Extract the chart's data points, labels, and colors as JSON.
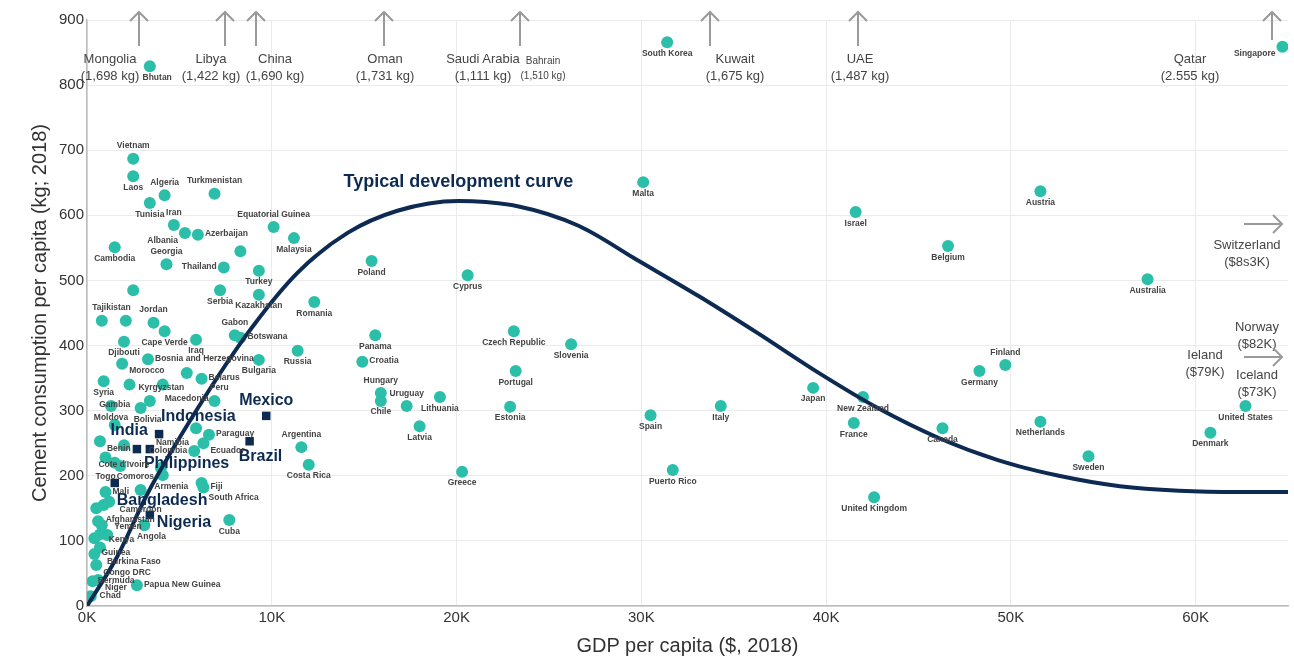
{
  "chart_data": {
    "type": "scatter",
    "xlabel": "GDP per capita ($, 2018)",
    "ylabel": "Cement consumption per capita (kg; 2018)",
    "xlim": [
      0,
      65000
    ],
    "xticks": [
      {
        "value": 0,
        "label": "0K"
      },
      {
        "value": 10000,
        "label": "10K"
      },
      {
        "value": 20000,
        "label": "20K"
      },
      {
        "value": 30000,
        "label": "30K"
      },
      {
        "value": 40000,
        "label": "40K"
      },
      {
        "value": 50000,
        "label": "50K"
      },
      {
        "value": 60000,
        "label": "60K"
      }
    ],
    "ylim": [
      0,
      900
    ],
    "yticks": [
      0,
      100,
      200,
      300,
      400,
      500,
      600,
      700,
      800,
      900
    ],
    "grid": true,
    "legend": false,
    "series": [
      {
        "color": "#2bbfa9",
        "marker": "circle",
        "x": [
          3400,
          31400,
          64700,
          30100,
          41600,
          51600,
          46600,
          57400,
          48300,
          49700,
          39300,
          42000,
          41500,
          46300,
          51600,
          54200,
          60800,
          62700,
          34300,
          30500,
          31700,
          42600,
          26200,
          23100,
          23200,
          22900,
          20600,
          15400,
          20300,
          19100,
          18000,
          15900,
          15900,
          17300,
          15600,
          14900,
          12300,
          11400,
          9300,
          11600,
          12000,
          10100,
          11200,
          9300,
          9300,
          7400,
          7200,
          6900,
          4200,
          3400,
          2500,
          2500,
          4700,
          5300,
          6000,
          1500,
          4300,
          800,
          3600,
          4200,
          2000,
          8000,
          8300,
          5900,
          3300,
          1900,
          900,
          4100,
          6200,
          3400,
          6900,
          1300,
          2900,
          5900,
          1500,
          6600,
          6300,
          5800,
          700,
          2000,
          1000,
          1500,
          4100,
          6200,
          6300,
          7700,
          1000,
          2900,
          900,
          800,
          3100,
          400,
          1100,
          700,
          500,
          300,
          600,
          2700,
          200,
          2500,
          2100,
          8300,
          5400,
          2300,
          4000,
          500,
          600,
          1200,
          1800,
          400,
          700
        ],
        "values": [
          829,
          866,
          859,
          651,
          605,
          637,
          553,
          502,
          361,
          370,
          335,
          321,
          281,
          273,
          283,
          230,
          266,
          307,
          307,
          293,
          209,
          167,
          402,
          422,
          361,
          306,
          508,
          530,
          206,
          321,
          276,
          327,
          315,
          307,
          416,
          375,
          467,
          392,
          378,
          244,
          217,
          582,
          565,
          515,
          478,
          520,
          485,
          633,
          631,
          619,
          660,
          687,
          585,
          573,
          570,
          551,
          525,
          438,
          435,
          422,
          406,
          416,
          412,
          409,
          379,
          372,
          345,
          340,
          349,
          315,
          315,
          307,
          304,
          273,
          278,
          263,
          250,
          238,
          253,
          247,
          228,
          220,
          201,
          189,
          182,
          132,
          175,
          178,
          155,
          124,
          124,
          104,
          109,
          90,
          63,
          38,
          40,
          32,
          15,
          485,
          438,
          545,
          358,
          340,
          212,
          150,
          130,
          160,
          215,
          80,
          110
        ]
      },
      {
        "name": "Indonesia",
        "color": "#0d2b52",
        "marker": "square",
        "x": [
          3900
        ],
        "values": [
          264
        ]
      },
      {
        "name": "Philippines",
        "color": "#0d2b52",
        "marker": "square",
        "x": [
          2700
        ],
        "values": [
          241
        ]
      },
      {
        "name": "Mexico",
        "color": "#0d2b52",
        "marker": "square",
        "x": [
          9700
        ],
        "values": [
          292
        ]
      },
      {
        "name": "Brazil",
        "color": "#0d2b52",
        "marker": "square",
        "x": [
          8800
        ],
        "values": [
          253
        ]
      },
      {
        "name": "India",
        "color": "#0d2b52",
        "marker": "square",
        "x": [
          3400
        ],
        "values": [
          241
        ]
      },
      {
        "name": "Bangladesh",
        "color": "#0d2b52",
        "marker": "square",
        "x": [
          1500
        ],
        "values": [
          189
        ]
      },
      {
        "name": "Nigeria",
        "color": "#0d2b52",
        "marker": "square",
        "x": [
          3400
        ],
        "values": [
          140
        ]
      },
      {
        "name": "Typical development curve",
        "type": "line",
        "marker": "none",
        "line_style": "solid",
        "color": "#0d2b52",
        "x": [
          0,
          1600,
          3300,
          6000,
          8700,
          11400,
          14100,
          16800,
          20100,
          23300,
          26600,
          29800,
          33100,
          36300,
          39600,
          42800,
          46100,
          49300,
          52600,
          55900,
          59100,
          62400,
          65000
        ],
        "values": [
          0,
          74,
          174,
          304,
          419,
          512,
          573,
          607,
          622,
          614,
          584,
          531,
          476,
          419,
          358,
          304,
          258,
          224,
          200,
          184,
          177,
          175,
          175
        ]
      }
    ],
    "annotations": [
      {
        "text": "Bhutan",
        "x": 3400,
        "y": 829
      },
      {
        "text": "South Korea",
        "x": 31400,
        "y": 866
      },
      {
        "text": "Singapore",
        "x": 64700,
        "y": 859
      },
      {
        "text": "Malta",
        "x": 30100,
        "y": 651
      },
      {
        "text": "Israel",
        "x": 41600,
        "y": 605
      },
      {
        "text": "Austria",
        "x": 51600,
        "y": 637
      },
      {
        "text": "Belgium",
        "x": 46600,
        "y": 553
      },
      {
        "text": "Australia",
        "x": 57400,
        "y": 502
      },
      {
        "text": "Germany",
        "x": 48300,
        "y": 361
      },
      {
        "text": "Finland",
        "x": 49700,
        "y": 370
      },
      {
        "text": "Japan",
        "x": 39300,
        "y": 335
      },
      {
        "text": "New Zealand",
        "x": 42000,
        "y": 321
      },
      {
        "text": "France",
        "x": 41500,
        "y": 281
      },
      {
        "text": "Canada",
        "x": 46300,
        "y": 273
      },
      {
        "text": "Netherlands",
        "x": 51600,
        "y": 283
      },
      {
        "text": "Sweden",
        "x": 54200,
        "y": 230
      },
      {
        "text": "Denmark",
        "x": 60800,
        "y": 266
      },
      {
        "text": "United States",
        "x": 62700,
        "y": 307
      },
      {
        "text": "Italy",
        "x": 34300,
        "y": 307
      },
      {
        "text": "Spain",
        "x": 30500,
        "y": 293
      },
      {
        "text": "Puerto Rico",
        "x": 31700,
        "y": 209
      },
      {
        "text": "United Kingdom",
        "x": 42600,
        "y": 167
      },
      {
        "text": "Slovenia",
        "x": 26200,
        "y": 402
      },
      {
        "text": "Czech Republic",
        "x": 23100,
        "y": 422
      },
      {
        "text": "Portugal",
        "x": 23200,
        "y": 361
      },
      {
        "text": "Estonia",
        "x": 22900,
        "y": 306
      },
      {
        "text": "Cyprus",
        "x": 20600,
        "y": 508
      },
      {
        "text": "Poland",
        "x": 15400,
        "y": 530
      },
      {
        "text": "Greece",
        "x": 20300,
        "y": 206
      },
      {
        "text": "Lithuania",
        "x": 19100,
        "y": 321
      },
      {
        "text": "Latvia",
        "x": 18000,
        "y": 276
      },
      {
        "text": "Hungary",
        "x": 15900,
        "y": 327
      },
      {
        "text": "Chile",
        "x": 15900,
        "y": 315
      },
      {
        "text": "Uruguay",
        "x": 17300,
        "y": 307
      },
      {
        "text": "Panama",
        "x": 15600,
        "y": 416
      },
      {
        "text": "Croatia",
        "x": 14900,
        "y": 375
      },
      {
        "text": "Romania",
        "x": 12300,
        "y": 467
      },
      {
        "text": "Russia",
        "x": 11400,
        "y": 392
      },
      {
        "text": "Bulgaria",
        "x": 9300,
        "y": 378
      },
      {
        "text": "Argentina",
        "x": 11600,
        "y": 244
      },
      {
        "text": "Costa Rica",
        "x": 12000,
        "y": 217
      },
      {
        "text": "Equatorial Guinea",
        "x": 10100,
        "y": 582
      },
      {
        "text": "Malaysia",
        "x": 11200,
        "y": 565
      },
      {
        "text": "Turkey",
        "x": 9300,
        "y": 515
      },
      {
        "text": "Kazakhstan",
        "x": 9300,
        "y": 478
      },
      {
        "text": "Thailand",
        "x": 7400,
        "y": 520
      },
      {
        "text": "Serbia",
        "x": 7200,
        "y": 485
      },
      {
        "text": "Turkmenistan",
        "x": 6900,
        "y": 633
      },
      {
        "text": "Algeria",
        "x": 4200,
        "y": 631
      },
      {
        "text": "Tunisia",
        "x": 3400,
        "y": 619
      },
      {
        "text": "Laos",
        "x": 2500,
        "y": 660
      },
      {
        "text": "Vietnam",
        "x": 2500,
        "y": 687
      },
      {
        "text": "Iran",
        "x": 4700,
        "y": 585
      },
      {
        "text": "Albania",
        "x": 5300,
        "y": 573
      },
      {
        "text": "Azerbaijan",
        "x": 6000,
        "y": 570
      },
      {
        "text": "Cambodia",
        "x": 1500,
        "y": 551
      },
      {
        "text": "Georgia",
        "x": 4300,
        "y": 525
      },
      {
        "text": "Tajikistan",
        "x": 800,
        "y": 438
      },
      {
        "text": "Jordan",
        "x": 3600,
        "y": 435
      },
      {
        "text": "Cape Verde",
        "x": 4200,
        "y": 422
      },
      {
        "text": "Djibouti",
        "x": 2000,
        "y": 406
      },
      {
        "text": "Gabon",
        "x": 8000,
        "y": 416
      },
      {
        "text": "Botswana",
        "x": 8300,
        "y": 412
      },
      {
        "text": "Iraq",
        "x": 5900,
        "y": 409
      },
      {
        "text": "Bosnia and Herzegovina",
        "x": 3300,
        "y": 379
      },
      {
        "text": "Morocco",
        "x": 1900,
        "y": 372
      },
      {
        "text": "Syria",
        "x": 900,
        "y": 345
      },
      {
        "text": "Macedonia",
        "x": 4100,
        "y": 340
      },
      {
        "text": "Belarus",
        "x": 6200,
        "y": 349
      },
      {
        "text": "Kyrgyzstan",
        "x": 3400,
        "y": 315
      },
      {
        "text": "Peru",
        "x": 6900,
        "y": 315
      },
      {
        "text": "Moldova",
        "x": 1300,
        "y": 307
      },
      {
        "text": "Bolivia",
        "x": 2900,
        "y": 304
      },
      {
        "text": "Namibia",
        "x": 5900,
        "y": 273
      },
      {
        "text": "Gambia",
        "x": 1500,
        "y": 278
      },
      {
        "text": "Paraguay",
        "x": 6600,
        "y": 263
      },
      {
        "text": "Ecuador",
        "x": 6300,
        "y": 250
      },
      {
        "text": "Colombia",
        "x": 5800,
        "y": 238
      },
      {
        "text": "Benin",
        "x": 700,
        "y": 253
      },
      {
        "text": "Cote d'Ivoire",
        "x": 2000,
        "y": 247
      },
      {
        "text": "Togo",
        "x": 1000,
        "y": 228
      },
      {
        "text": "Comoros",
        "x": 1500,
        "y": 220
      },
      {
        "text": "Armenia",
        "x": 4100,
        "y": 201
      },
      {
        "text": "South Africa",
        "x": 6200,
        "y": 189
      },
      {
        "text": "Fiji",
        "x": 6300,
        "y": 182
      },
      {
        "text": "Cuba",
        "x": 7700,
        "y": 132
      },
      {
        "text": "Mali",
        "x": 1000,
        "y": 175
      },
      {
        "text": "Cameroon",
        "x": 2900,
        "y": 178
      },
      {
        "text": "Afghanistan",
        "x": 900,
        "y": 155
      },
      {
        "text": "Kenya",
        "x": 800,
        "y": 124
      },
      {
        "text": "Angola",
        "x": 3100,
        "y": 124
      },
      {
        "text": "Guinea",
        "x": 400,
        "y": 104
      },
      {
        "text": "Yemen",
        "x": 1100,
        "y": 109
      },
      {
        "text": "Burkina Faso",
        "x": 700,
        "y": 90
      },
      {
        "text": "Congo DRC",
        "x": 500,
        "y": 63
      },
      {
        "text": "Chad",
        "x": 300,
        "y": 38
      },
      {
        "text": "Niger",
        "x": 600,
        "y": 40
      },
      {
        "text": "Papua New Guinea",
        "x": 2700,
        "y": 32
      },
      {
        "text": "Bermuda",
        "x": 200,
        "y": 15
      },
      "Mongolia\n(1,698 kg)",
      "Libya\n(1,422 kg)",
      "China\n(1,690 kg)",
      "Oman\n(1,731 kg)",
      "Saudi Arabia\n(1,111 kg)",
      "Bahrain\n(1,510 kg)",
      "Kuwait\n(1,675 kg)",
      "UAE\n(1,487 kg)",
      "Qatar\n(2.555 kg)",
      "Switzerland\n($8s3K)",
      "Norway\n($82K)",
      "Ieland\n($79K)",
      "Iceland\n($73K)"
    ]
  }
}
